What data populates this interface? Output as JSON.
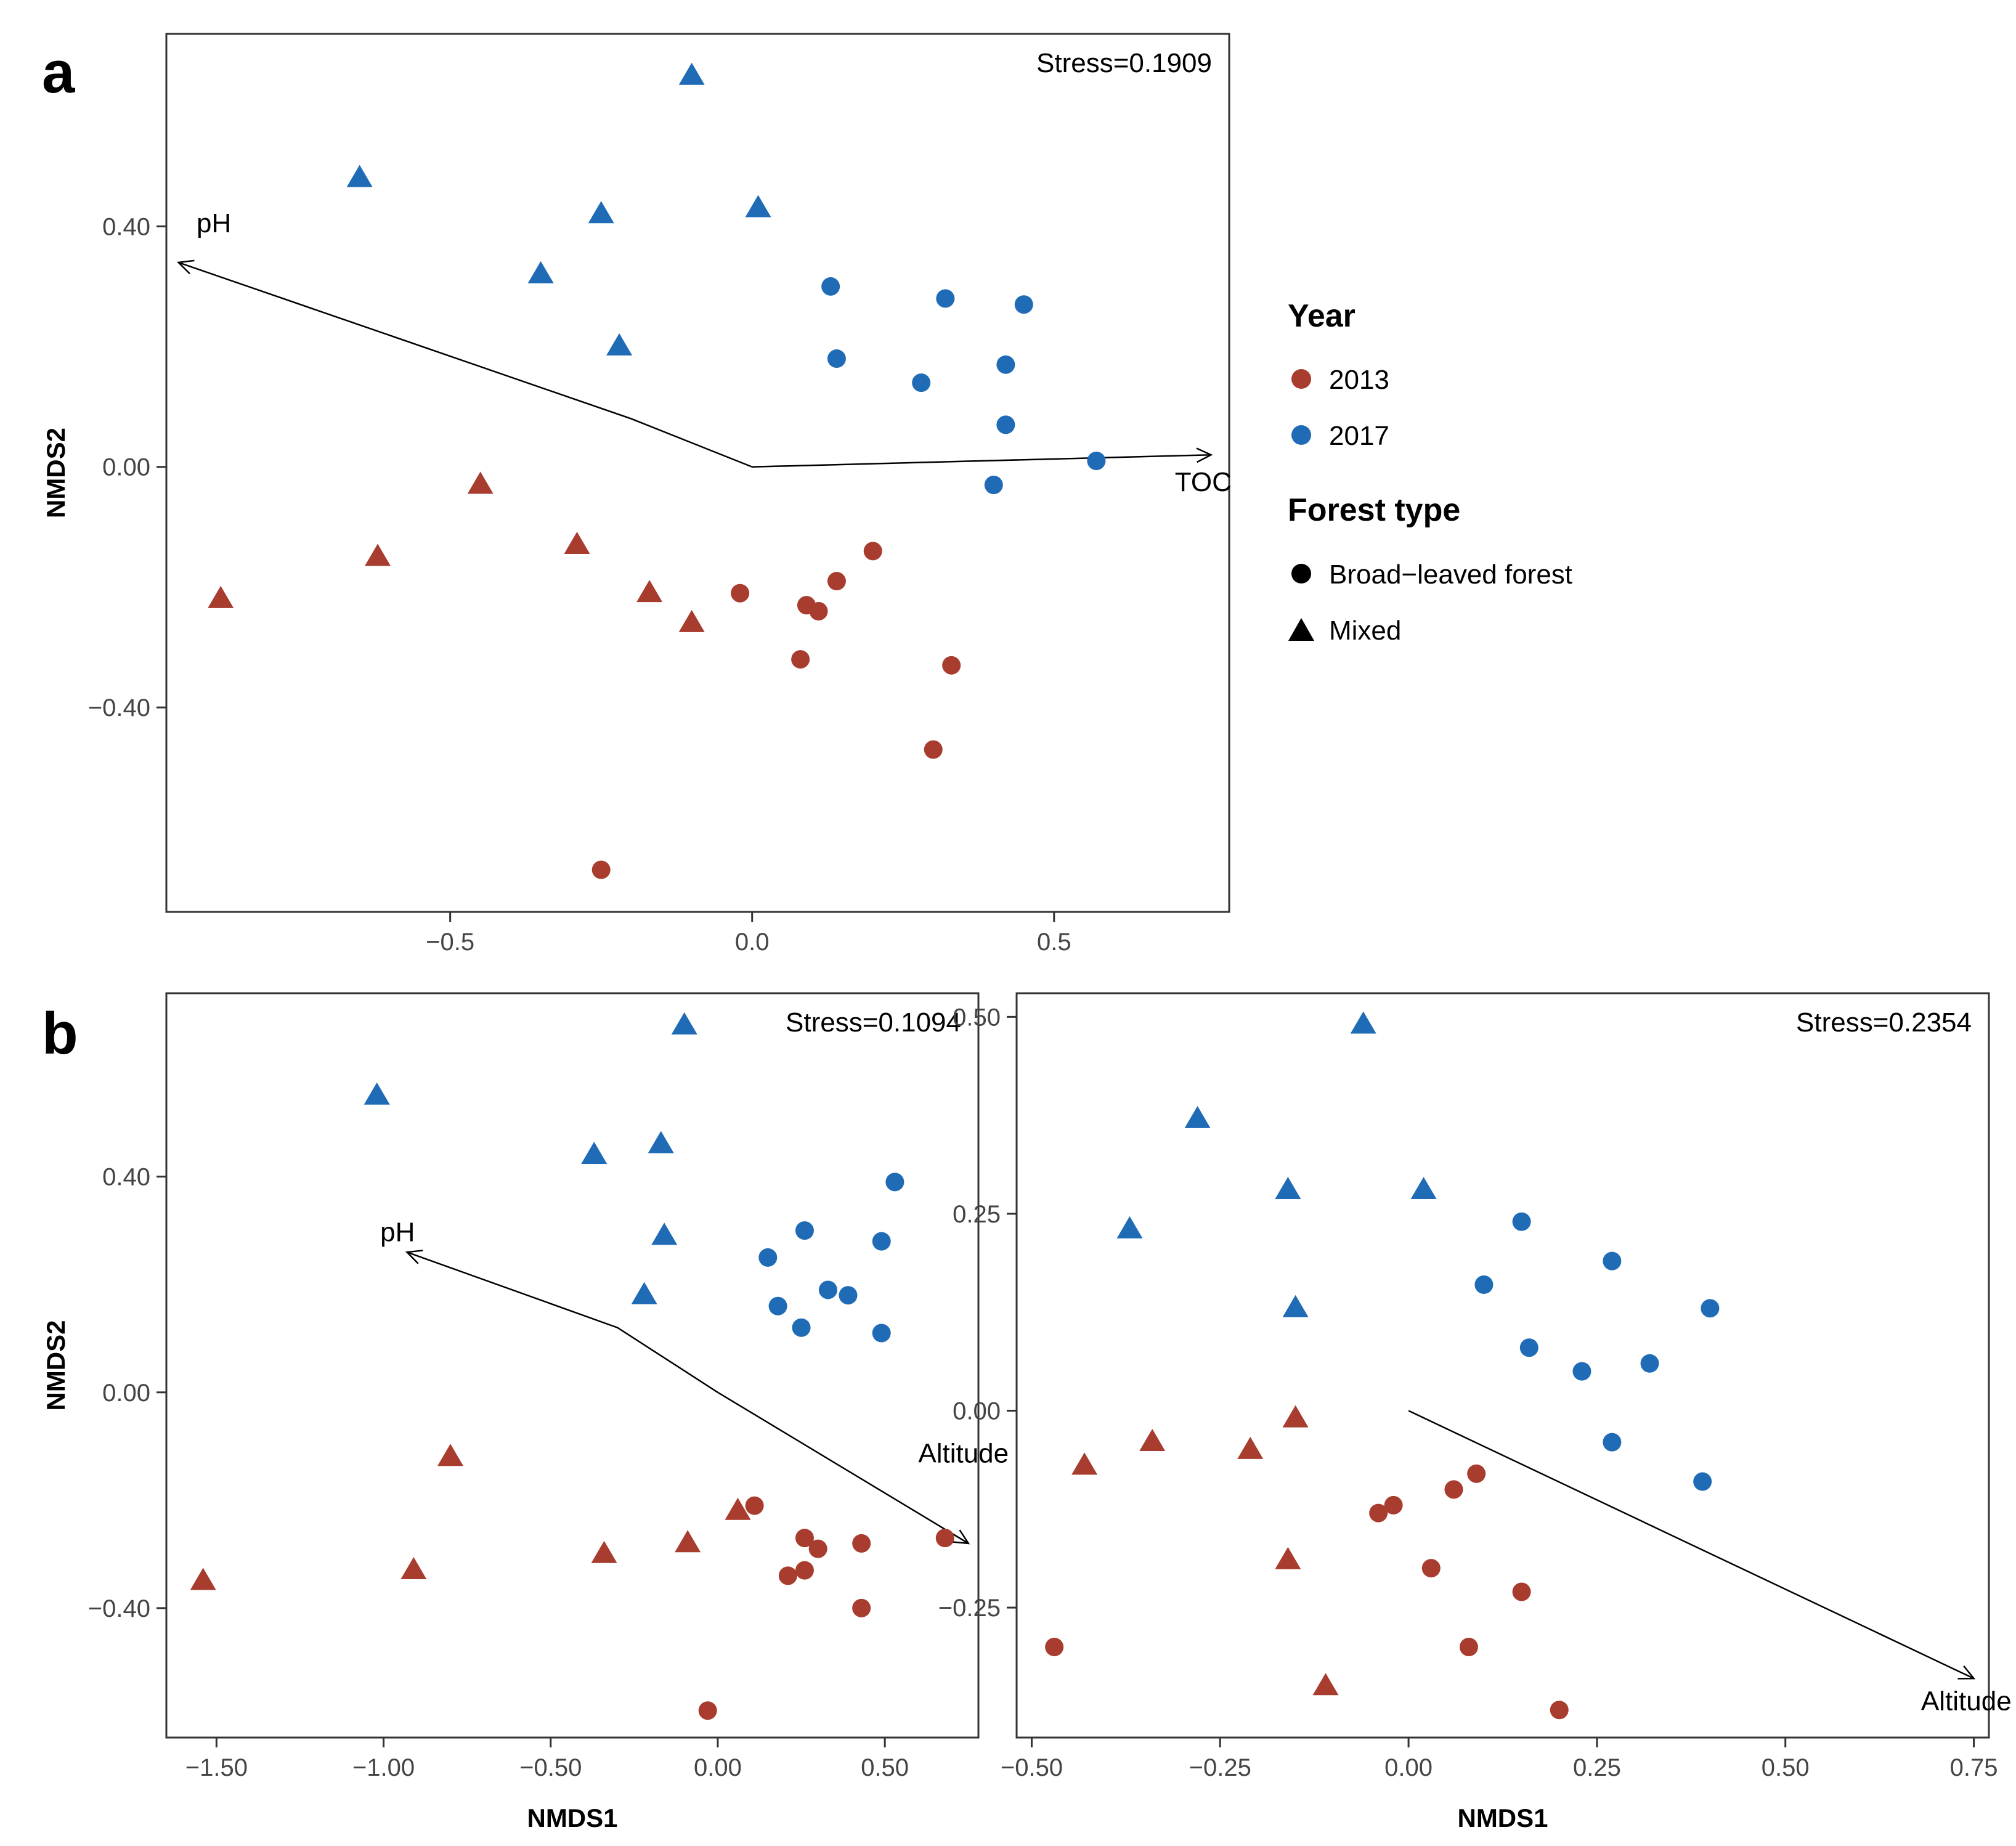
{
  "colors": {
    "y2013": "#a83c2e",
    "y2017": "#1f6bb5",
    "axis": "#333333",
    "frame": "#333333"
  },
  "legend": {
    "year_title": "Year",
    "year_2013": "2013",
    "year_2017": "2017",
    "forest_title": "Forest type",
    "broad": "Broad−leaved forest",
    "mixed": "Mixed"
  },
  "chart_data": [
    {
      "type": "scatter",
      "panel_label": "a",
      "stress": "Stress=0.1909",
      "xlabel": "",
      "ylabel": "NMDS2",
      "xlim": [
        -0.97,
        0.79
      ],
      "ylim": [
        -0.74,
        0.72
      ],
      "xticks": [
        -0.5,
        0.0,
        0.5
      ],
      "xtick_labels": [
        "−0.5",
        "0.0",
        "0.5"
      ],
      "yticks": [
        -0.4,
        0.0,
        0.4
      ],
      "ytick_labels": [
        "−0.40",
        "0.00",
        "0.40"
      ],
      "points": [
        {
          "x": -0.1,
          "y": 0.65,
          "year": "2017",
          "shape": "triangle"
        },
        {
          "x": -0.65,
          "y": 0.48,
          "year": "2017",
          "shape": "triangle"
        },
        {
          "x": -0.25,
          "y": 0.42,
          "year": "2017",
          "shape": "triangle"
        },
        {
          "x": 0.01,
          "y": 0.43,
          "year": "2017",
          "shape": "triangle"
        },
        {
          "x": -0.35,
          "y": 0.32,
          "year": "2017",
          "shape": "triangle"
        },
        {
          "x": -0.22,
          "y": 0.2,
          "year": "2017",
          "shape": "triangle"
        },
        {
          "x": 0.13,
          "y": 0.3,
          "year": "2017",
          "shape": "circle"
        },
        {
          "x": 0.32,
          "y": 0.28,
          "year": "2017",
          "shape": "circle"
        },
        {
          "x": 0.45,
          "y": 0.27,
          "year": "2017",
          "shape": "circle"
        },
        {
          "x": 0.14,
          "y": 0.18,
          "year": "2017",
          "shape": "circle"
        },
        {
          "x": 0.28,
          "y": 0.14,
          "year": "2017",
          "shape": "circle"
        },
        {
          "x": 0.42,
          "y": 0.17,
          "year": "2017",
          "shape": "circle"
        },
        {
          "x": 0.42,
          "y": 0.07,
          "year": "2017",
          "shape": "circle"
        },
        {
          "x": 0.57,
          "y": 0.01,
          "year": "2017",
          "shape": "circle"
        },
        {
          "x": 0.4,
          "y": -0.03,
          "year": "2017",
          "shape": "circle"
        },
        {
          "x": -0.45,
          "y": -0.03,
          "year": "2013",
          "shape": "triangle"
        },
        {
          "x": -0.62,
          "y": -0.15,
          "year": "2013",
          "shape": "triangle"
        },
        {
          "x": -0.29,
          "y": -0.13,
          "year": "2013",
          "shape": "triangle"
        },
        {
          "x": -0.88,
          "y": -0.22,
          "year": "2013",
          "shape": "triangle"
        },
        {
          "x": -0.17,
          "y": -0.21,
          "year": "2013",
          "shape": "triangle"
        },
        {
          "x": -0.1,
          "y": -0.26,
          "year": "2013",
          "shape": "triangle"
        },
        {
          "x": -0.02,
          "y": -0.21,
          "year": "2013",
          "shape": "circle"
        },
        {
          "x": 0.09,
          "y": -0.23,
          "year": "2013",
          "shape": "circle"
        },
        {
          "x": 0.11,
          "y": -0.24,
          "year": "2013",
          "shape": "circle"
        },
        {
          "x": 0.14,
          "y": -0.19,
          "year": "2013",
          "shape": "circle"
        },
        {
          "x": 0.2,
          "y": -0.14,
          "year": "2013",
          "shape": "circle"
        },
        {
          "x": 0.08,
          "y": -0.32,
          "year": "2013",
          "shape": "circle"
        },
        {
          "x": 0.33,
          "y": -0.33,
          "year": "2013",
          "shape": "circle"
        },
        {
          "x": 0.3,
          "y": -0.47,
          "year": "2013",
          "shape": "circle"
        },
        {
          "x": -0.25,
          "y": -0.67,
          "year": "2013",
          "shape": "circle"
        }
      ],
      "vectors": [
        {
          "label": "pH",
          "path": [
            [
              0,
              0
            ],
            [
              -0.2,
              0.08
            ],
            [
              -0.95,
              0.34
            ]
          ],
          "label_x": -0.92,
          "label_y": 0.39
        },
        {
          "label": "TOC",
          "path": [
            [
              0,
              0
            ],
            [
              0.76,
              0.02
            ]
          ],
          "label_x": 0.7,
          "label_y": -0.04
        }
      ]
    },
    {
      "type": "scatter",
      "panel_label": "b",
      "stress": "Stress=0.1094",
      "xlabel": "NMDS1",
      "ylabel": "NMDS2",
      "xlim": [
        -1.65,
        0.78
      ],
      "ylim": [
        -0.64,
        0.74
      ],
      "xticks": [
        -1.5,
        -1.0,
        -0.5,
        0.0,
        0.5
      ],
      "xtick_labels": [
        "−1.50",
        "−1.00",
        "−0.50",
        "0.00",
        "0.50"
      ],
      "yticks": [
        -0.4,
        0.0,
        0.4
      ],
      "ytick_labels": [
        "−0.40",
        "0.00",
        "0.40"
      ],
      "points": [
        {
          "x": -0.1,
          "y": 0.68,
          "year": "2017",
          "shape": "triangle"
        },
        {
          "x": -1.02,
          "y": 0.55,
          "year": "2017",
          "shape": "triangle"
        },
        {
          "x": -0.37,
          "y": 0.44,
          "year": "2017",
          "shape": "triangle"
        },
        {
          "x": -0.17,
          "y": 0.46,
          "year": "2017",
          "shape": "triangle"
        },
        {
          "x": -0.16,
          "y": 0.29,
          "year": "2017",
          "shape": "triangle"
        },
        {
          "x": -0.22,
          "y": 0.18,
          "year": "2017",
          "shape": "triangle"
        },
        {
          "x": 0.53,
          "y": 0.39,
          "year": "2017",
          "shape": "circle"
        },
        {
          "x": 0.26,
          "y": 0.3,
          "year": "2017",
          "shape": "circle"
        },
        {
          "x": 0.49,
          "y": 0.28,
          "year": "2017",
          "shape": "circle"
        },
        {
          "x": 0.15,
          "y": 0.25,
          "year": "2017",
          "shape": "circle"
        },
        {
          "x": 0.33,
          "y": 0.19,
          "year": "2017",
          "shape": "circle"
        },
        {
          "x": 0.39,
          "y": 0.18,
          "year": "2017",
          "shape": "circle"
        },
        {
          "x": 0.18,
          "y": 0.16,
          "year": "2017",
          "shape": "circle"
        },
        {
          "x": 0.25,
          "y": 0.12,
          "year": "2017",
          "shape": "circle"
        },
        {
          "x": 0.49,
          "y": 0.11,
          "year": "2017",
          "shape": "circle"
        },
        {
          "x": -0.8,
          "y": -0.12,
          "year": "2013",
          "shape": "triangle"
        },
        {
          "x": -1.54,
          "y": -0.35,
          "year": "2013",
          "shape": "triangle"
        },
        {
          "x": -0.91,
          "y": -0.33,
          "year": "2013",
          "shape": "triangle"
        },
        {
          "x": -0.34,
          "y": -0.3,
          "year": "2013",
          "shape": "triangle"
        },
        {
          "x": -0.09,
          "y": -0.28,
          "year": "2013",
          "shape": "triangle"
        },
        {
          "x": 0.06,
          "y": -0.22,
          "year": "2013",
          "shape": "triangle"
        },
        {
          "x": 0.11,
          "y": -0.21,
          "year": "2013",
          "shape": "circle"
        },
        {
          "x": 0.26,
          "y": -0.27,
          "year": "2013",
          "shape": "circle"
        },
        {
          "x": 0.3,
          "y": -0.29,
          "year": "2013",
          "shape": "circle"
        },
        {
          "x": 0.43,
          "y": -0.28,
          "year": "2013",
          "shape": "circle"
        },
        {
          "x": 0.68,
          "y": -0.27,
          "year": "2013",
          "shape": "circle"
        },
        {
          "x": 0.21,
          "y": -0.34,
          "year": "2013",
          "shape": "circle"
        },
        {
          "x": 0.26,
          "y": -0.33,
          "year": "2013",
          "shape": "circle"
        },
        {
          "x": 0.43,
          "y": -0.4,
          "year": "2013",
          "shape": "circle"
        },
        {
          "x": -0.03,
          "y": -0.59,
          "year": "2013",
          "shape": "circle"
        }
      ],
      "vectors": [
        {
          "label": "pH",
          "path": [
            [
              0,
              0
            ],
            [
              -0.3,
              0.12
            ],
            [
              -0.93,
              0.26
            ]
          ],
          "label_x": -1.01,
          "label_y": 0.28
        },
        {
          "label": "Altitude",
          "path": [
            [
              0,
              0
            ],
            [
              0.75,
              -0.28
            ]
          ],
          "label_x": 0.6,
          "label_y": -0.13
        }
      ]
    },
    {
      "type": "scatter",
      "panel_label": "",
      "stress": "Stress=0.2354",
      "xlabel": "NMDS1",
      "ylabel": "",
      "xlim": [
        -0.52,
        0.77
      ],
      "ylim": [
        -0.415,
        0.53
      ],
      "xticks": [
        -0.5,
        -0.25,
        0.0,
        0.25,
        0.5,
        0.75
      ],
      "xtick_labels": [
        "−0.50",
        "−0.25",
        "0.00",
        "0.25",
        "0.50",
        "0.75"
      ],
      "yticks": [
        -0.25,
        0.0,
        0.25,
        0.5
      ],
      "ytick_labels": [
        "−0.25",
        "0.00",
        "0.25",
        "0.50"
      ],
      "points": [
        {
          "x": -0.06,
          "y": 0.49,
          "year": "2017",
          "shape": "triangle"
        },
        {
          "x": -0.28,
          "y": 0.37,
          "year": "2017",
          "shape": "triangle"
        },
        {
          "x": -0.16,
          "y": 0.28,
          "year": "2017",
          "shape": "triangle"
        },
        {
          "x": 0.02,
          "y": 0.28,
          "year": "2017",
          "shape": "triangle"
        },
        {
          "x": -0.37,
          "y": 0.23,
          "year": "2017",
          "shape": "triangle"
        },
        {
          "x": -0.15,
          "y": 0.13,
          "year": "2017",
          "shape": "triangle"
        },
        {
          "x": 0.15,
          "y": 0.24,
          "year": "2017",
          "shape": "circle"
        },
        {
          "x": 0.27,
          "y": 0.19,
          "year": "2017",
          "shape": "circle"
        },
        {
          "x": 0.1,
          "y": 0.16,
          "year": "2017",
          "shape": "circle"
        },
        {
          "x": 0.4,
          "y": 0.13,
          "year": "2017",
          "shape": "circle"
        },
        {
          "x": 0.16,
          "y": 0.08,
          "year": "2017",
          "shape": "circle"
        },
        {
          "x": 0.32,
          "y": 0.06,
          "year": "2017",
          "shape": "circle"
        },
        {
          "x": 0.23,
          "y": 0.05,
          "year": "2017",
          "shape": "circle"
        },
        {
          "x": 0.27,
          "y": -0.04,
          "year": "2017",
          "shape": "circle"
        },
        {
          "x": 0.39,
          "y": -0.09,
          "year": "2017",
          "shape": "circle"
        },
        {
          "x": -0.15,
          "y": -0.01,
          "year": "2013",
          "shape": "triangle"
        },
        {
          "x": -0.34,
          "y": -0.04,
          "year": "2013",
          "shape": "triangle"
        },
        {
          "x": -0.21,
          "y": -0.05,
          "year": "2013",
          "shape": "triangle"
        },
        {
          "x": -0.43,
          "y": -0.07,
          "year": "2013",
          "shape": "triangle"
        },
        {
          "x": -0.16,
          "y": -0.19,
          "year": "2013",
          "shape": "triangle"
        },
        {
          "x": -0.11,
          "y": -0.35,
          "year": "2013",
          "shape": "triangle"
        },
        {
          "x": 0.09,
          "y": -0.08,
          "year": "2013",
          "shape": "circle"
        },
        {
          "x": 0.06,
          "y": -0.1,
          "year": "2013",
          "shape": "circle"
        },
        {
          "x": -0.02,
          "y": -0.12,
          "year": "2013",
          "shape": "circle"
        },
        {
          "x": -0.04,
          "y": -0.13,
          "year": "2013",
          "shape": "circle"
        },
        {
          "x": 0.03,
          "y": -0.2,
          "year": "2013",
          "shape": "circle"
        },
        {
          "x": 0.15,
          "y": -0.23,
          "year": "2013",
          "shape": "circle"
        },
        {
          "x": -0.47,
          "y": -0.3,
          "year": "2013",
          "shape": "circle"
        },
        {
          "x": 0.08,
          "y": -0.3,
          "year": "2013",
          "shape": "circle"
        },
        {
          "x": 0.2,
          "y": -0.38,
          "year": "2013",
          "shape": "circle"
        }
      ],
      "vectors": [
        {
          "label": "Altitude",
          "path": [
            [
              0,
              0
            ],
            [
              0.75,
              -0.34
            ]
          ],
          "label_x": 0.68,
          "label_y": -0.38
        }
      ]
    }
  ]
}
